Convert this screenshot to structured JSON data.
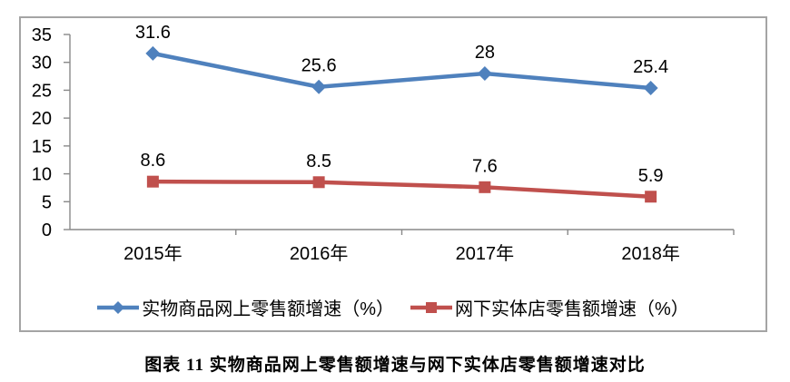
{
  "chart_data": {
    "type": "line",
    "categories": [
      "2015年",
      "2016年",
      "2017年",
      "2018年"
    ],
    "series": [
      {
        "name": "实物商品网上零售额增速（%）",
        "values": [
          31.6,
          25.6,
          28,
          25.4
        ],
        "color": "#4F81BD",
        "marker": "diamond"
      },
      {
        "name": "网下实体店零售额增速（%）",
        "values": [
          8.6,
          8.5,
          7.6,
          5.9
        ],
        "color": "#C0504D",
        "marker": "square"
      }
    ],
    "title": "",
    "xlabel": "",
    "ylabel": "",
    "ylim": [
      0,
      35
    ],
    "yticks": [
      0,
      5,
      10,
      15,
      20,
      25,
      30,
      35
    ],
    "grid": false,
    "data_labels": true,
    "legend_position": "bottom"
  },
  "caption": "图表 11 实物商品网上零售额增速与网下实体店零售额增速对比",
  "colors": {
    "series_online": "#4F81BD",
    "series_offline": "#C0504D",
    "axis": "#898989",
    "frame_border": "#A4A4A4",
    "text": "#000000",
    "background": "#FFFFFF"
  }
}
